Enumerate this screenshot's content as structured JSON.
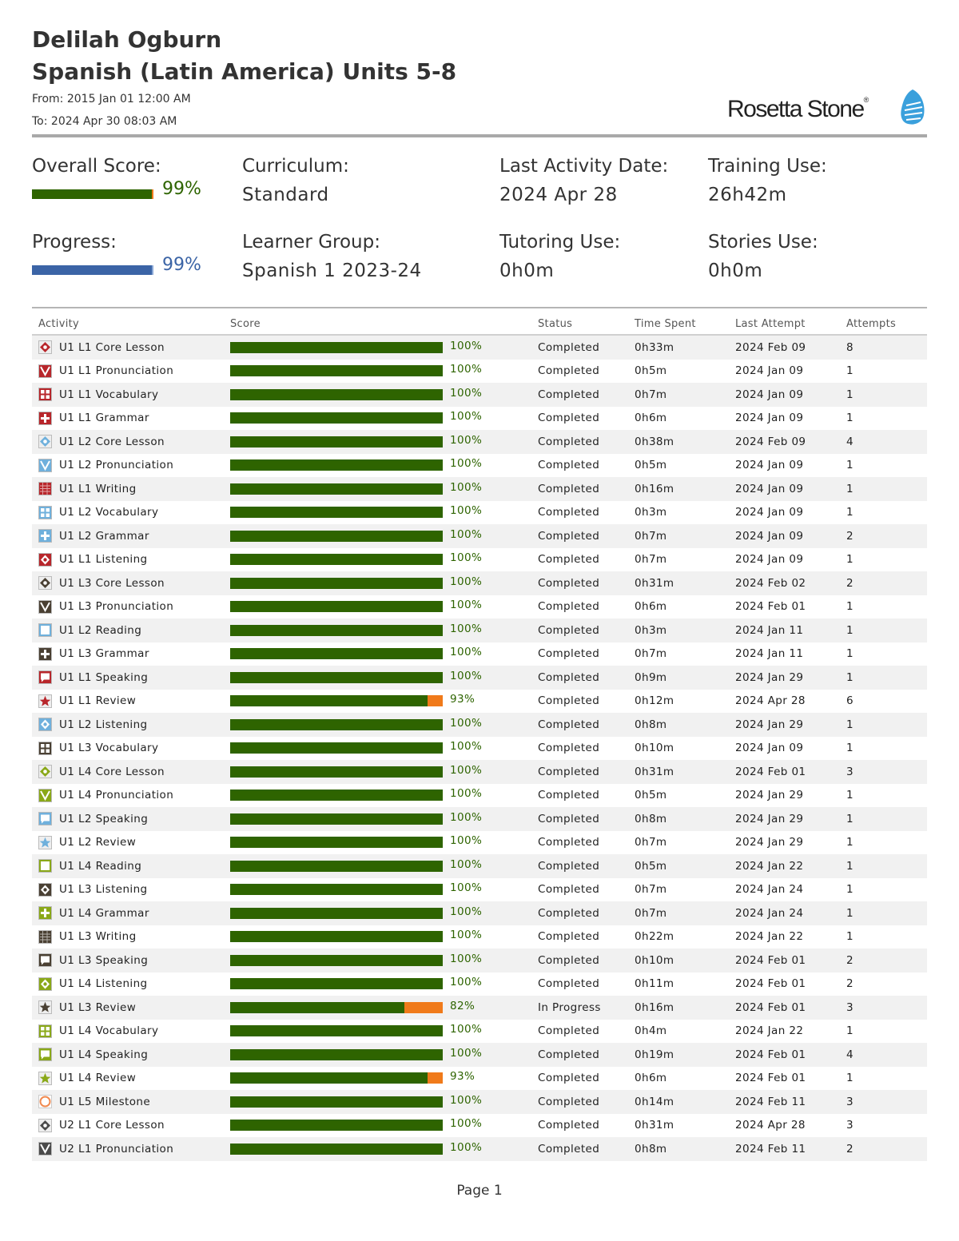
{
  "header": {
    "learner_name": "Delilah Ogburn",
    "course": "Spanish (Latin America) Units 5-8",
    "from": "From: 2015 Jan 01 12:00 AM",
    "to": "To: 2024 Apr 30 08:03 AM",
    "logo_text": "Rosetta Stone",
    "logo_mark": "®"
  },
  "summary": {
    "overall_score": {
      "label": "Overall Score:",
      "value": "99%",
      "fraction": 0.99,
      "color": "#2e6400",
      "rest_color": "#f07a1a"
    },
    "progress": {
      "label": "Progress:",
      "value": "99%",
      "fraction": 0.99,
      "color": "#3b64a6",
      "rest_color": "#8aa7d6"
    },
    "curriculum": {
      "label": "Curriculum:",
      "value": "Standard"
    },
    "learner_group": {
      "label": "Learner Group:",
      "value": "Spanish 1 2023-24"
    },
    "last_activity": {
      "label": "Last Activity Date:",
      "value": "2024 Apr 28"
    },
    "tutoring": {
      "label": "Tutoring Use:",
      "value": "0h0m"
    },
    "training": {
      "label": "Training Use:",
      "value": "26h42m"
    },
    "stories": {
      "label": "Stories Use:",
      "value": "0h0m"
    }
  },
  "table": {
    "columns": [
      "Activity",
      "Score",
      "Status",
      "Time Spent",
      "Last Attempt",
      "Attempts"
    ],
    "rows": [
      {
        "activity": "U1 L1 Core Lesson",
        "icon": "core-lesson-icon",
        "color": "#b8262b",
        "score": 100,
        "score_label": "100%",
        "status": "Completed",
        "time": "0h33m",
        "last": "2024 Feb 09",
        "attempts": "8"
      },
      {
        "activity": "U1 L1 Pronunciation",
        "icon": "pronunciation-icon",
        "color": "#b8262b",
        "score": 100,
        "score_label": "100%",
        "status": "Completed",
        "time": "0h5m",
        "last": "2024 Jan 09",
        "attempts": "1"
      },
      {
        "activity": "U1 L1 Vocabulary",
        "icon": "vocabulary-icon",
        "color": "#b8262b",
        "score": 100,
        "score_label": "100%",
        "status": "Completed",
        "time": "0h7m",
        "last": "2024 Jan 09",
        "attempts": "1"
      },
      {
        "activity": "U1 L1 Grammar",
        "icon": "grammar-icon",
        "color": "#b8262b",
        "score": 100,
        "score_label": "100%",
        "status": "Completed",
        "time": "0h6m",
        "last": "2024 Jan 09",
        "attempts": "1"
      },
      {
        "activity": "U1 L2 Core Lesson",
        "icon": "core-lesson-icon",
        "color": "#6fb0dc",
        "score": 100,
        "score_label": "100%",
        "status": "Completed",
        "time": "0h38m",
        "last": "2024 Feb 09",
        "attempts": "4"
      },
      {
        "activity": "U1 L2 Pronunciation",
        "icon": "pronunciation-icon",
        "color": "#6fb0dc",
        "score": 100,
        "score_label": "100%",
        "status": "Completed",
        "time": "0h5m",
        "last": "2024 Jan 09",
        "attempts": "1"
      },
      {
        "activity": "U1 L1 Writing",
        "icon": "writing-icon",
        "color": "#b8262b",
        "score": 100,
        "score_label": "100%",
        "status": "Completed",
        "time": "0h16m",
        "last": "2024 Jan 09",
        "attempts": "1"
      },
      {
        "activity": "U1 L2 Vocabulary",
        "icon": "vocabulary-icon",
        "color": "#6fb0dc",
        "score": 100,
        "score_label": "100%",
        "status": "Completed",
        "time": "0h3m",
        "last": "2024 Jan 09",
        "attempts": "1"
      },
      {
        "activity": "U1 L2 Grammar",
        "icon": "grammar-icon",
        "color": "#6fb0dc",
        "score": 100,
        "score_label": "100%",
        "status": "Completed",
        "time": "0h7m",
        "last": "2024 Jan 09",
        "attempts": "2"
      },
      {
        "activity": "U1 L1 Listening",
        "icon": "listening-icon",
        "color": "#b8262b",
        "score": 100,
        "score_label": "100%",
        "status": "Completed",
        "time": "0h7m",
        "last": "2024 Jan 09",
        "attempts": "1"
      },
      {
        "activity": "U1 L3 Core Lesson",
        "icon": "core-lesson-icon",
        "color": "#4a4033",
        "score": 100,
        "score_label": "100%",
        "status": "Completed",
        "time": "0h31m",
        "last": "2024 Feb 02",
        "attempts": "2"
      },
      {
        "activity": "U1 L3 Pronunciation",
        "icon": "pronunciation-icon",
        "color": "#4a4033",
        "score": 100,
        "score_label": "100%",
        "status": "Completed",
        "time": "0h6m",
        "last": "2024 Feb 01",
        "attempts": "1"
      },
      {
        "activity": "U1 L2 Reading",
        "icon": "reading-icon",
        "color": "#6fb0dc",
        "score": 100,
        "score_label": "100%",
        "status": "Completed",
        "time": "0h3m",
        "last": "2024 Jan 11",
        "attempts": "1"
      },
      {
        "activity": "U1 L3 Grammar",
        "icon": "grammar-icon",
        "color": "#4a4033",
        "score": 100,
        "score_label": "100%",
        "status": "Completed",
        "time": "0h7m",
        "last": "2024 Jan 11",
        "attempts": "1"
      },
      {
        "activity": "U1 L1 Speaking",
        "icon": "speaking-icon",
        "color": "#b8262b",
        "score": 100,
        "score_label": "100%",
        "status": "Completed",
        "time": "0h9m",
        "last": "2024 Jan 29",
        "attempts": "1"
      },
      {
        "activity": "U1 L1 Review",
        "icon": "review-star-icon",
        "color": "#b8262b",
        "score": 93,
        "score_label": "93%",
        "status": "Completed",
        "time": "0h12m",
        "last": "2024 Apr 28",
        "attempts": "6"
      },
      {
        "activity": "U1 L2 Listening",
        "icon": "listening-icon",
        "color": "#6fb0dc",
        "score": 100,
        "score_label": "100%",
        "status": "Completed",
        "time": "0h8m",
        "last": "2024 Jan 29",
        "attempts": "1"
      },
      {
        "activity": "U1 L3 Vocabulary",
        "icon": "vocabulary-icon",
        "color": "#4a4033",
        "score": 100,
        "score_label": "100%",
        "status": "Completed",
        "time": "0h10m",
        "last": "2024 Jan 09",
        "attempts": "1"
      },
      {
        "activity": "U1 L4 Core Lesson",
        "icon": "core-lesson-icon",
        "color": "#8aa818",
        "score": 100,
        "score_label": "100%",
        "status": "Completed",
        "time": "0h31m",
        "last": "2024 Feb 01",
        "attempts": "3"
      },
      {
        "activity": "U1 L4 Pronunciation",
        "icon": "pronunciation-icon",
        "color": "#8aa818",
        "score": 100,
        "score_label": "100%",
        "status": "Completed",
        "time": "0h5m",
        "last": "2024 Jan 29",
        "attempts": "1"
      },
      {
        "activity": "U1 L2 Speaking",
        "icon": "speaking-icon",
        "color": "#6fb0dc",
        "score": 100,
        "score_label": "100%",
        "status": "Completed",
        "time": "0h8m",
        "last": "2024 Jan 29",
        "attempts": "1"
      },
      {
        "activity": "U1 L2 Review",
        "icon": "review-star-icon",
        "color": "#6fb0dc",
        "score": 100,
        "score_label": "100%",
        "status": "Completed",
        "time": "0h7m",
        "last": "2024 Jan 29",
        "attempts": "1"
      },
      {
        "activity": "U1 L4 Reading",
        "icon": "reading-icon",
        "color": "#8aa818",
        "score": 100,
        "score_label": "100%",
        "status": "Completed",
        "time": "0h5m",
        "last": "2024 Jan 22",
        "attempts": "1"
      },
      {
        "activity": "U1 L3 Listening",
        "icon": "listening-icon",
        "color": "#4a4033",
        "score": 100,
        "score_label": "100%",
        "status": "Completed",
        "time": "0h7m",
        "last": "2024 Jan 24",
        "attempts": "1"
      },
      {
        "activity": "U1 L4 Grammar",
        "icon": "grammar-icon",
        "color": "#8aa818",
        "score": 100,
        "score_label": "100%",
        "status": "Completed",
        "time": "0h7m",
        "last": "2024 Jan 24",
        "attempts": "1"
      },
      {
        "activity": "U1 L3 Writing",
        "icon": "writing-icon",
        "color": "#4a4033",
        "score": 100,
        "score_label": "100%",
        "status": "Completed",
        "time": "0h22m",
        "last": "2024 Jan 22",
        "attempts": "1"
      },
      {
        "activity": "U1 L3 Speaking",
        "icon": "speaking-icon",
        "color": "#4a4033",
        "score": 100,
        "score_label": "100%",
        "status": "Completed",
        "time": "0h10m",
        "last": "2024 Feb 01",
        "attempts": "2"
      },
      {
        "activity": "U1 L4 Listening",
        "icon": "listening-icon",
        "color": "#8aa818",
        "score": 100,
        "score_label": "100%",
        "status": "Completed",
        "time": "0h11m",
        "last": "2024 Feb 01",
        "attempts": "2"
      },
      {
        "activity": "U1 L3 Review",
        "icon": "review-star-icon",
        "color": "#4a4033",
        "score": 82,
        "score_label": "82%",
        "status": "In Progress",
        "time": "0h16m",
        "last": "2024 Feb 01",
        "attempts": "3"
      },
      {
        "activity": "U1 L4 Vocabulary",
        "icon": "vocabulary-icon",
        "color": "#8aa818",
        "score": 100,
        "score_label": "100%",
        "status": "Completed",
        "time": "0h4m",
        "last": "2024 Jan 22",
        "attempts": "1"
      },
      {
        "activity": "U1 L4 Speaking",
        "icon": "speaking-icon",
        "color": "#8aa818",
        "score": 100,
        "score_label": "100%",
        "status": "Completed",
        "time": "0h19m",
        "last": "2024 Feb 01",
        "attempts": "4"
      },
      {
        "activity": "U1 L4 Review",
        "icon": "review-star-icon",
        "color": "#8aa818",
        "score": 93,
        "score_label": "93%",
        "status": "Completed",
        "time": "0h6m",
        "last": "2024 Feb 01",
        "attempts": "1"
      },
      {
        "activity": "U1 L5 Milestone",
        "icon": "milestone-icon",
        "color": "#f08a50",
        "score": 100,
        "score_label": "100%",
        "status": "Completed",
        "time": "0h14m",
        "last": "2024 Feb 11",
        "attempts": "3"
      },
      {
        "activity": "U2 L1 Core Lesson",
        "icon": "core-lesson-icon",
        "color": "#4a4a4a",
        "score": 100,
        "score_label": "100%",
        "status": "Completed",
        "time": "0h31m",
        "last": "2024 Apr 28",
        "attempts": "3"
      },
      {
        "activity": "U2 L1 Pronunciation",
        "icon": "pronunciation-icon",
        "color": "#4a4a4a",
        "score": 100,
        "score_label": "100%",
        "status": "Completed",
        "time": "0h8m",
        "last": "2024 Feb 11",
        "attempts": "2"
      }
    ]
  },
  "footer": {
    "page": "Page 1"
  }
}
